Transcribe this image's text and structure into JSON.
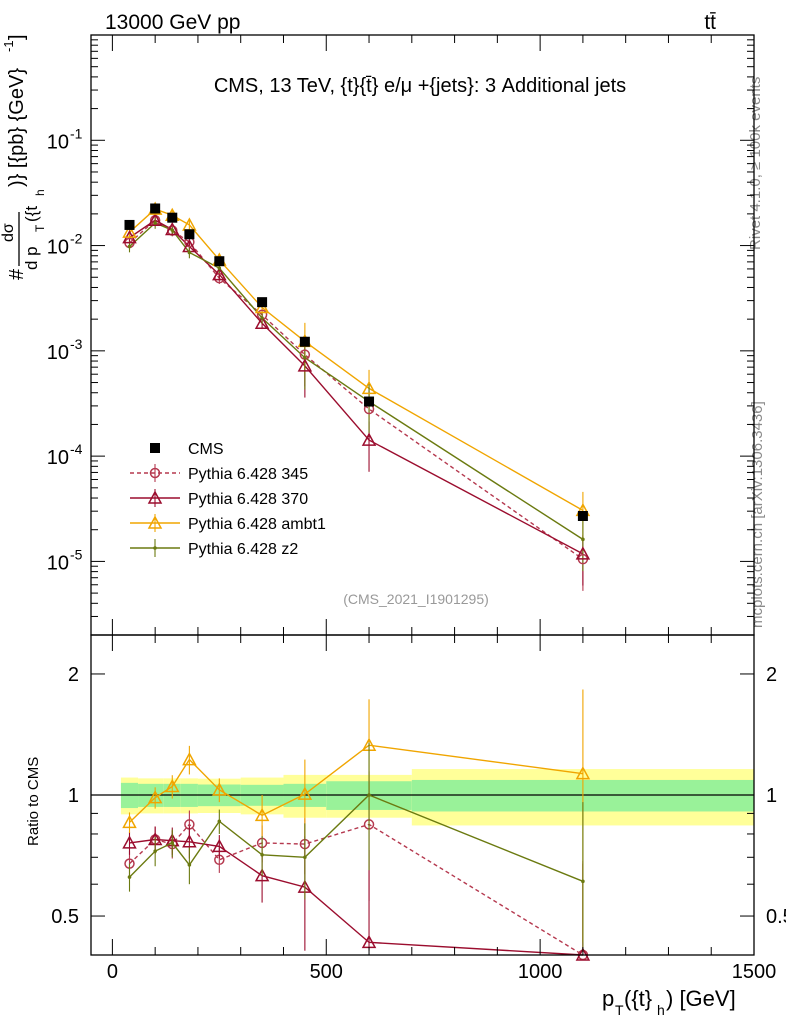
{
  "header": {
    "energy_label": "13000 GeV pp",
    "process_label": "tt̄",
    "figure_title": "CMS, 13 TeV, {t}{t̄} e/μ +{jets}: 3 Additional jets",
    "analysis_id": "(CMS_2021_I1901295)",
    "side_label_top": "Rivet 4.1.0, ≥ 100k events",
    "side_label_bottom": "mcplots.cern.ch [arXiv:1306.3436]"
  },
  "chart_data": [
    {
      "type": "scatter",
      "panel": "main",
      "ylabel": "#frac{dσ}{d p_T({t}_h)} [{pb} {GeV}^-1]",
      "ylabel_num": "dσ",
      "ylabel_den": "d p",
      "ylabel_rest": ")} [{pb} {GeV}",
      "ylabel_sub": "T",
      "ylabel_sup": "-1",
      "yscale": "log",
      "ylim": [
        2e-06,
        1.0
      ],
      "xlim": [
        -50,
        1500
      ],
      "ytick_labels": [
        "10^-1",
        "10^-2",
        "10^-3",
        "10^-4",
        "10^-5"
      ],
      "legend_position": "lower-left",
      "legend": [
        "CMS",
        "Pythia 6.428 345",
        "Pythia 6.428 370",
        "Pythia 6.428 ambt1",
        "Pythia 6.428 z2"
      ],
      "series": [
        {
          "name": "CMS",
          "color": "#000000",
          "marker": "square",
          "x": [
            40,
            100,
            140,
            180,
            250,
            350,
            450,
            600,
            1100
          ],
          "y": [
            0.0157,
            0.0225,
            0.0184,
            0.0128,
            0.0071,
            0.0029,
            0.00122,
            0.00033,
            2.7e-05
          ]
        },
        {
          "name": "Pythia 6.428 345",
          "color": "#b5394f",
          "marker": "circle-open",
          "dash": "4,3",
          "x": [
            40,
            100,
            140,
            180,
            250,
            350,
            450,
            600,
            1100
          ],
          "y": [
            0.0106,
            0.0174,
            0.0139,
            0.0108,
            0.0049,
            0.0022,
            0.00092,
            0.00028,
            1.05e-05
          ]
        },
        {
          "name": "Pythia 6.428 370",
          "color": "#9b0d2e",
          "marker": "triangle-open",
          "x": [
            40,
            100,
            140,
            180,
            250,
            350,
            450,
            600,
            1100
          ],
          "y": [
            0.0119,
            0.0174,
            0.0142,
            0.0098,
            0.0053,
            0.00183,
            0.00072,
            0.000142,
            1.18e-05
          ]
        },
        {
          "name": "Pythia 6.428 ambt1",
          "color": "#f0a500",
          "marker": "triangle-open",
          "x": [
            40,
            100,
            140,
            180,
            250,
            350,
            450,
            600,
            1100
          ],
          "y": [
            0.0134,
            0.0222,
            0.0194,
            0.0157,
            0.0073,
            0.00258,
            0.00123,
            0.00044,
            3.05e-05
          ]
        },
        {
          "name": "Pythia 6.428 z2",
          "color": "#6b7a10",
          "marker": "dot",
          "x": [
            40,
            100,
            140,
            180,
            250,
            350,
            450,
            600,
            1100
          ],
          "y": [
            0.0098,
            0.0164,
            0.014,
            0.0086,
            0.0061,
            0.00205,
            0.00086,
            0.00033,
            1.62e-05
          ]
        }
      ]
    },
    {
      "type": "line",
      "panel": "ratio",
      "xlabel": "p_T({t}_h) [GeV]",
      "xlabel_main": "p",
      "xlabel_sub": "T",
      "xlabel_rest": "({t}",
      "xlabel_sub2": "h",
      "xlabel_unit": ") [GeV]",
      "ylabel": "Ratio to CMS",
      "yscale": "log",
      "ylim": [
        0.4,
        2.5
      ],
      "xlim": [
        -50,
        1500
      ],
      "xtick_labels": [
        "0",
        "500",
        "1000",
        "1500"
      ],
      "ytick_labels": [
        "2",
        "1",
        "0.5"
      ],
      "bins": [
        20,
        60,
        120,
        160,
        200,
        300,
        400,
        500,
        700,
        1500
      ],
      "band_inner": [
        0.072,
        0.066,
        0.066,
        0.066,
        0.062,
        0.06,
        0.066,
        0.082,
        0.09
      ],
      "band_outer": [
        0.105,
        0.1,
        0.1,
        0.1,
        0.098,
        0.105,
        0.122,
        0.122,
        0.16
      ],
      "series": [
        {
          "name": "Pythia 6.428 345",
          "color": "#b5394f",
          "marker": "circle-open",
          "dash": "4,3",
          "x": [
            40,
            100,
            140,
            180,
            250,
            350,
            450,
            600,
            1100
          ],
          "y": [
            0.675,
            0.775,
            0.755,
            0.845,
            0.69,
            0.76,
            0.755,
            0.845,
            0.385
          ],
          "err": [
            0.05,
            0.06,
            0.06,
            0.07,
            0.05,
            0.08,
            0.12,
            0.3,
            0.3
          ]
        },
        {
          "name": "Pythia 6.428 370",
          "color": "#9b0d2e",
          "marker": "triangle-open",
          "x": [
            40,
            100,
            140,
            180,
            250,
            350,
            450,
            600,
            1100
          ],
          "y": [
            0.76,
            0.775,
            0.77,
            0.765,
            0.745,
            0.63,
            0.59,
            0.43,
            0.375
          ],
          "err": [
            0.05,
            0.06,
            0.06,
            0.07,
            0.05,
            0.09,
            0.2,
            0.3,
            0.3
          ]
        },
        {
          "name": "Pythia 6.428 ambt1",
          "color": "#f0a500",
          "marker": "triangle-open",
          "x": [
            40,
            100,
            140,
            180,
            250,
            350,
            450,
            600,
            1100
          ],
          "y": [
            0.855,
            0.985,
            1.05,
            1.225,
            1.03,
            0.89,
            1.005,
            1.33,
            1.13
          ],
          "err": [
            0.05,
            0.06,
            0.07,
            0.1,
            0.07,
            0.11,
            0.22,
            0.4,
            0.7
          ]
        },
        {
          "name": "Pythia 6.428 z2",
          "color": "#6b7a10",
          "marker": "dot",
          "x": [
            40,
            100,
            140,
            180,
            250,
            350,
            450,
            600,
            1100
          ],
          "y": [
            0.625,
            0.725,
            0.76,
            0.67,
            0.86,
            0.71,
            0.7,
            1.0,
            0.61
          ],
          "err": [
            0.05,
            0.06,
            0.06,
            0.07,
            0.06,
            0.08,
            0.15,
            0.35,
            0.35
          ]
        }
      ]
    }
  ]
}
